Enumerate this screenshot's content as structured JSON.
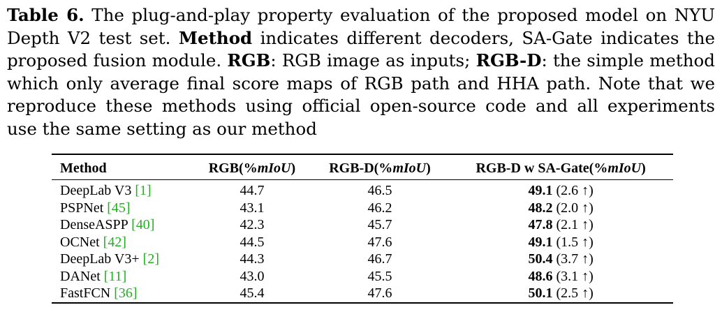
{
  "caption": {
    "label": "Table 6.",
    "part1": " The plug-and-play property evaluation of the proposed model on NYU Depth V2 test set. ",
    "method_bold": "Method",
    "part2": " indicates different decoders, SA-Gate indicates the proposed fusion module. ",
    "rgb_bold": "RGB",
    "part3": ": RGB image as inputs; ",
    "rgbd_bold": "RGB-D",
    "part4": ": the simple method which only average final score maps of RGB path and HHA path. Note that we reproduce these methods using official open-source code and all experiments use the same setting as our method"
  },
  "table": {
    "headers": {
      "method": "Method",
      "rgb_prefix": "RGB(%",
      "rgbd_prefix": "RGB-D(%",
      "sagate_prefix": "RGB-D w SA-Gate(%",
      "metric": "mIoU",
      "suffix": ")"
    },
    "rows": [
      {
        "name": "DeepLab V3 ",
        "cite": "[1]",
        "rgb": "44.7",
        "rgbd": "46.5",
        "best": "49.1",
        "gain": " (2.6 ↑)"
      },
      {
        "name": "PSPNet ",
        "cite": "[45]",
        "rgb": "43.1",
        "rgbd": "46.2",
        "best": "48.2",
        "gain": " (2.0 ↑)"
      },
      {
        "name": "DenseASPP ",
        "cite": "[40]",
        "rgb": "42.3",
        "rgbd": "45.7",
        "best": "47.8",
        "gain": " (2.1 ↑)"
      },
      {
        "name": "OCNet ",
        "cite": "[42]",
        "rgb": "44.5",
        "rgbd": "47.6",
        "best": "49.1",
        "gain": " (1.5 ↑)"
      },
      {
        "name": "DeepLab V3+ ",
        "cite": "[2]",
        "rgb": "44.3",
        "rgbd": "46.7",
        "best": "50.4",
        "gain": " (3.7 ↑)"
      },
      {
        "name": "DANet ",
        "cite": "[11]",
        "rgb": "43.0",
        "rgbd": "45.5",
        "best": "48.6",
        "gain": " (3.1 ↑)"
      },
      {
        "name": "FastFCN ",
        "cite": "[36]",
        "rgb": "45.4",
        "rgbd": "47.6",
        "best": "50.1",
        "gain": " (2.5 ↑)"
      }
    ]
  }
}
